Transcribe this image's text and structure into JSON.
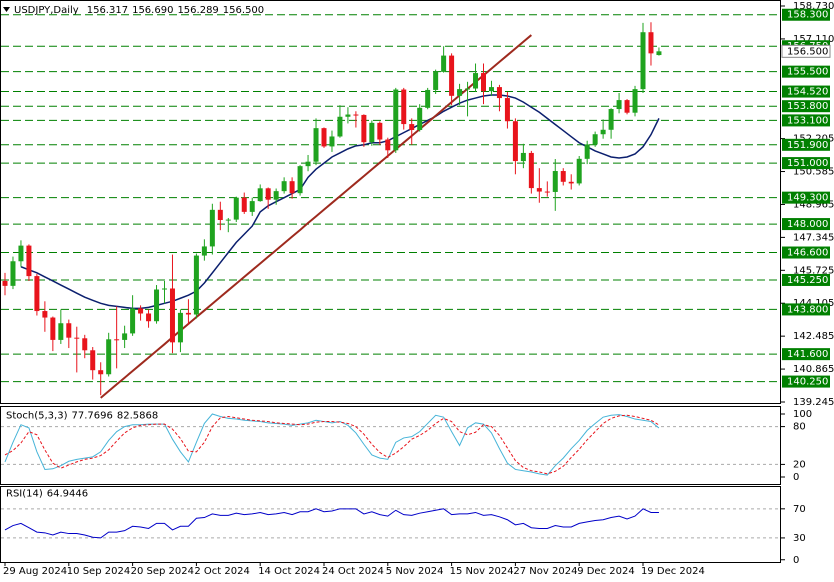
{
  "chart_data": [
    {
      "type": "candlestick",
      "title": "USDJPY,Daily",
      "header_labels": [
        "156.317",
        "156.690",
        "156.289",
        "156.500"
      ],
      "categories": [
        "29 Aug 2024",
        null,
        null,
        null,
        null,
        null,
        null,
        null,
        "10 Sep 2024",
        null,
        null,
        null,
        null,
        null,
        null,
        null,
        "20 Sep 2024",
        null,
        null,
        null,
        null,
        null,
        null,
        null,
        "2 Oct 2024",
        null,
        null,
        null,
        null,
        null,
        null,
        null,
        "14 Oct 2024",
        null,
        null,
        null,
        null,
        null,
        null,
        null,
        "24 Oct 2024",
        null,
        null,
        null,
        null,
        null,
        null,
        null,
        "5 Nov 2024",
        null,
        null,
        null,
        null,
        null,
        null,
        null,
        "15 Nov 2024",
        null,
        null,
        null,
        null,
        null,
        null,
        null,
        "27 Nov 2024",
        null,
        null,
        null,
        null,
        null,
        null,
        null,
        "9 Dec 2024",
        null,
        null,
        null,
        null,
        null,
        null,
        null,
        "19 Dec 2024",
        null,
        null
      ],
      "open": [
        145.2,
        144.96,
        146.17,
        146.94,
        145.44,
        143.72,
        143.4,
        142.3,
        143.12,
        142.41,
        142.38,
        141.79,
        140.81,
        140.61,
        142.33,
        142.3,
        142.62,
        143.85,
        143.6,
        143.22,
        144.78,
        144.83,
        142.18,
        143.63,
        143.55,
        146.45,
        146.9,
        148.7,
        148.2,
        148.22,
        149.3,
        148.6,
        149.13,
        149.76,
        149.2,
        149.62,
        150.11,
        149.52,
        150.85,
        151.07,
        152.72,
        151.82,
        152.31,
        153.28,
        153.39,
        153.37,
        152.03,
        152.98,
        152.16,
        151.63,
        154.62,
        152.92,
        152.63,
        153.72,
        154.6,
        155.49,
        156.29,
        154.31,
        154.64,
        154.67,
        155.43,
        154.54,
        154.74,
        154.2,
        153.06,
        151.1,
        151.5,
        149.77,
        149.6,
        149.58,
        150.61,
        150.08,
        150.0,
        151.21,
        151.92,
        152.42,
        152.64,
        153.66,
        154.1,
        153.48,
        154.64,
        157.44,
        156.317
      ],
      "high": [
        145.6,
        146.4,
        147.2,
        147.0,
        145.55,
        144.2,
        143.45,
        143.8,
        143.3,
        142.95,
        142.55,
        141.95,
        141.2,
        142.65,
        143.95,
        143.0,
        144.5,
        144.0,
        143.8,
        145.0,
        145.2,
        146.5,
        143.8,
        144.3,
        146.55,
        147.25,
        149.0,
        149.1,
        148.3,
        149.35,
        149.55,
        149.3,
        149.95,
        149.8,
        149.75,
        150.3,
        150.3,
        150.9,
        151.4,
        153.2,
        152.75,
        152.6,
        153.85,
        153.75,
        153.55,
        153.4,
        153.1,
        153.05,
        152.25,
        154.7,
        154.7,
        153.2,
        153.9,
        154.7,
        155.6,
        156.75,
        156.4,
        154.9,
        155.0,
        155.9,
        155.9,
        155.05,
        154.85,
        154.5,
        153.2,
        151.95,
        151.6,
        150.75,
        150.1,
        151.2,
        150.75,
        150.45,
        151.35,
        152.1,
        152.55,
        153.15,
        153.7,
        154.45,
        154.15,
        154.8,
        157.9,
        157.93,
        156.69
      ],
      "low": [
        144.5,
        144.8,
        145.9,
        145.2,
        143.5,
        142.7,
        141.75,
        142.1,
        141.9,
        140.7,
        141.4,
        140.35,
        139.58,
        140.5,
        140.9,
        141.9,
        142.5,
        143.25,
        142.9,
        143.1,
        144.1,
        141.65,
        141.7,
        143.05,
        143.35,
        146.2,
        146.5,
        147.7,
        147.6,
        148.1,
        148.5,
        148.4,
        149.1,
        148.75,
        148.95,
        149.5,
        149.25,
        149.4,
        150.6,
        150.9,
        151.75,
        151.55,
        152.25,
        152.95,
        152.75,
        151.8,
        151.85,
        151.9,
        151.25,
        151.5,
        152.65,
        151.9,
        152.55,
        153.65,
        154.4,
        155.45,
        153.85,
        153.85,
        153.3,
        154.5,
        153.9,
        154.3,
        153.55,
        152.7,
        150.45,
        150.75,
        149.5,
        149.05,
        149.35,
        148.65,
        149.9,
        149.7,
        149.9,
        150.95,
        151.8,
        152.2,
        152.2,
        153.45,
        153.4,
        153.3,
        154.45,
        155.8,
        156.289
      ],
      "close": [
        144.96,
        146.17,
        146.94,
        145.44,
        143.72,
        143.4,
        142.3,
        143.12,
        142.41,
        142.38,
        141.79,
        140.81,
        140.61,
        142.33,
        142.3,
        142.62,
        143.85,
        143.6,
        143.22,
        144.78,
        144.83,
        142.18,
        143.63,
        143.55,
        146.45,
        146.9,
        148.7,
        148.2,
        148.22,
        149.3,
        148.6,
        149.13,
        149.76,
        149.2,
        149.62,
        150.11,
        149.52,
        150.85,
        151.07,
        152.72,
        151.82,
        152.31,
        153.28,
        153.39,
        153.37,
        152.03,
        152.98,
        152.16,
        151.63,
        154.62,
        152.92,
        152.63,
        153.72,
        154.6,
        155.49,
        156.29,
        154.31,
        154.64,
        154.67,
        155.43,
        154.54,
        154.74,
        154.2,
        153.06,
        151.1,
        151.5,
        149.77,
        149.6,
        149.58,
        150.61,
        150.08,
        150.0,
        151.21,
        151.92,
        152.42,
        152.64,
        153.66,
        154.1,
        153.48,
        154.64,
        157.44,
        156.4,
        156.5
      ],
      "up_color": "#1fa31f",
      "down_color": "#e8141c",
      "series": [
        {
          "color": "#0b1f6e",
          "values": [
            null,
            null,
            145.9,
            145.75,
            145.6,
            145.4,
            145.2,
            145.0,
            144.8,
            144.6,
            144.4,
            144.25,
            144.1,
            144.0,
            143.95,
            143.9,
            143.85,
            143.85,
            143.9,
            144.0,
            144.1,
            144.2,
            144.35,
            144.5,
            144.7,
            145.1,
            145.6,
            146.1,
            146.6,
            147.1,
            147.5,
            147.9,
            148.6,
            148.9,
            149.1,
            149.3,
            149.5,
            149.7,
            150.3,
            150.7,
            151.0,
            151.3,
            151.5,
            151.7,
            151.85,
            151.9,
            152.0,
            152.0,
            152.1,
            152.3,
            152.5,
            152.7,
            152.9,
            153.1,
            153.3,
            153.55,
            153.75,
            153.95,
            154.1,
            154.2,
            154.3,
            154.35,
            154.35,
            154.3,
            154.2,
            154.0,
            153.75,
            153.5,
            153.2,
            152.9,
            152.6,
            152.3,
            152.0,
            151.8,
            151.6,
            151.45,
            151.3,
            151.25,
            151.3,
            151.45,
            151.8,
            152.4,
            153.2
          ]
        },
        {
          "color": "#9e2a1e",
          "values": [
            null,
            null,
            null,
            null,
            null,
            null,
            null,
            null,
            null,
            null,
            null,
            null,
            139.45,
            139.78,
            140.11,
            140.44,
            140.77,
            141.1,
            141.43,
            141.76,
            142.09,
            142.43,
            142.76,
            143.09,
            143.42,
            143.75,
            144.08,
            144.41,
            144.74,
            145.07,
            145.4,
            145.73,
            146.06,
            146.39,
            146.72,
            147.05,
            147.38,
            147.71,
            148.05,
            148.38,
            148.71,
            149.04,
            149.37,
            149.7,
            150.03,
            150.36,
            150.69,
            151.02,
            151.35,
            151.68,
            152.01,
            152.34,
            152.67,
            153.0,
            153.33,
            153.67,
            154.0,
            154.33,
            154.66,
            154.99,
            155.32,
            155.65,
            155.98,
            156.31,
            156.64,
            156.97,
            157.3,
            null,
            null,
            null,
            null,
            null,
            null,
            null,
            null,
            null,
            null,
            null,
            null,
            null,
            null,
            null,
            null
          ]
        }
      ],
      "levels": [
        {
          "value": 158.3,
          "label": "158.300"
        },
        {
          "value": 156.75,
          "label": "156.750"
        },
        {
          "value": 155.5,
          "label": "155.500"
        },
        {
          "value": 154.52,
          "label": "154.520"
        },
        {
          "value": 153.8,
          "label": "153.800"
        },
        {
          "value": 153.1,
          "label": "153.100"
        },
        {
          "value": 151.9,
          "label": "151.900"
        },
        {
          "value": 151.0,
          "label": "151.000"
        },
        {
          "value": 149.3,
          "label": "149.300"
        },
        {
          "value": 148.0,
          "label": "148.000"
        },
        {
          "value": 146.6,
          "label": "146.600"
        },
        {
          "value": 145.25,
          "label": "145.250"
        },
        {
          "value": 143.8,
          "label": "143.800"
        },
        {
          "value": 141.6,
          "label": "141.600"
        },
        {
          "value": 140.25,
          "label": "140.250"
        }
      ],
      "level_color": "#008000",
      "current_price": {
        "value": 156.5,
        "label": "156.500"
      },
      "ylim": [
        139.245,
        158.73
      ],
      "yticks": [
        {
          "value": 158.73,
          "label": "158.730"
        },
        {
          "value": 157.11,
          "label": "157.110"
        },
        152.205,
        150.585,
        148.965,
        147.345,
        145.725,
        144.105,
        142.485,
        140.865,
        139.245
      ]
    },
    {
      "type": "line",
      "title": "Stoch(5,3,3)",
      "series": [
        {
          "color": "#46b4d8",
          "dashed": false,
          "values": [
            24,
            55,
            83,
            78,
            40,
            12,
            13,
            18,
            25,
            28,
            30,
            32,
            40,
            58,
            72,
            80,
            83,
            83,
            84,
            84,
            84,
            60,
            40,
            24,
            55,
            85,
            100,
            96,
            93,
            92,
            90,
            89,
            88,
            86,
            85,
            84,
            82,
            84,
            86,
            90,
            88,
            86,
            88,
            82,
            70,
            52,
            35,
            30,
            28,
            55,
            62,
            64,
            72,
            85,
            98,
            95,
            72,
            50,
            78,
            86,
            84,
            70,
            45,
            22,
            12,
            10,
            8,
            5,
            3,
            18,
            30,
            45,
            58,
            74,
            85,
            95,
            98,
            99,
            96,
            92,
            90,
            88,
            77.7696
          ]
        },
        {
          "color": "#e8141c",
          "dashed": true,
          "values": [
            35,
            42,
            54,
            72,
            67,
            43,
            22,
            14,
            19,
            24,
            28,
            30,
            34,
            43,
            57,
            70,
            78,
            82,
            83,
            84,
            84,
            76,
            61,
            41,
            40,
            55,
            80,
            94,
            96,
            94,
            92,
            90,
            89,
            88,
            86,
            85,
            84,
            83,
            84,
            87,
            88,
            88,
            87,
            85,
            80,
            68,
            52,
            39,
            31,
            38,
            48,
            60,
            66,
            74,
            85,
            93,
            88,
            72,
            67,
            71,
            83,
            80,
            66,
            46,
            26,
            15,
            10,
            8,
            5,
            9,
            17,
            31,
            44,
            59,
            72,
            85,
            93,
            97,
            98,
            96,
            93,
            90,
            82.5868
          ]
        }
      ],
      "ylim": [
        0,
        100
      ],
      "yticks": [
        100,
        80,
        20,
        0
      ],
      "levels": [
        80,
        20
      ]
    },
    {
      "type": "line",
      "title": "RSI(14)",
      "series": [
        {
          "color": "#0000c8",
          "dashed": false,
          "values": [
            41,
            47,
            50,
            44,
            38,
            37,
            34,
            38,
            36,
            36,
            34,
            31,
            30,
            38,
            38,
            40,
            46,
            45,
            43,
            50,
            50,
            41,
            46,
            46,
            57,
            58,
            63,
            61,
            61,
            64,
            62,
            63,
            65,
            62,
            63,
            65,
            62,
            66,
            66,
            70,
            66,
            67,
            70,
            70,
            70,
            63,
            66,
            62,
            60,
            68,
            62,
            61,
            64,
            66,
            68,
            70,
            62,
            63,
            63,
            65,
            61,
            62,
            59,
            55,
            48,
            50,
            44,
            43,
            43,
            47,
            45,
            45,
            50,
            52,
            54,
            55,
            58,
            60,
            56,
            60,
            70,
            65,
            64.9446
          ]
        }
      ],
      "ylim": [
        0,
        100
      ],
      "yticks": [
        70,
        30,
        0
      ],
      "levels": [
        70,
        30
      ]
    }
  ]
}
